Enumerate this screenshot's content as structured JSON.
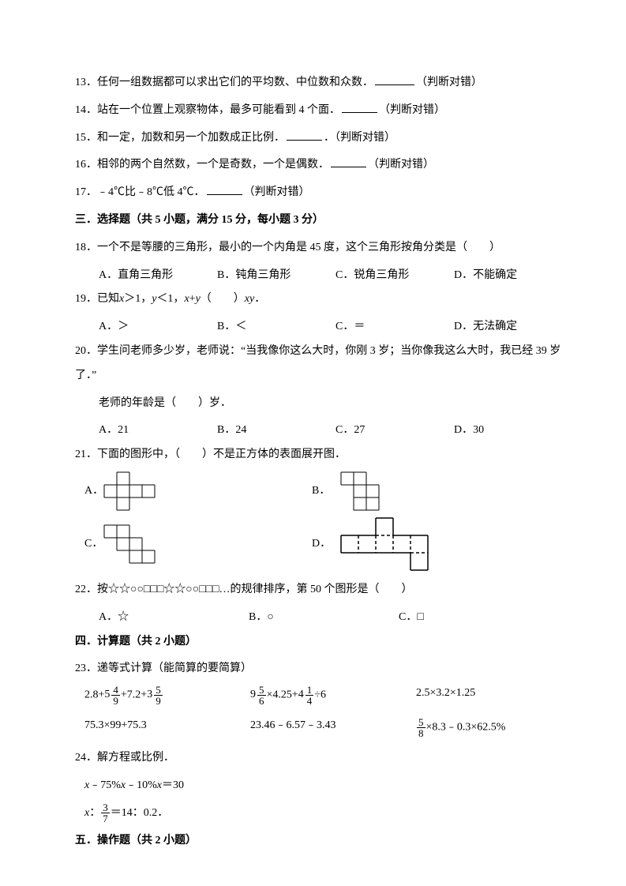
{
  "q13": {
    "num": "13．",
    "text_a": "任何一组数据都可以求出它们的平均数、中位数和众数．",
    "suffix": "（判断对错）"
  },
  "q14": {
    "num": "14．",
    "text_a": "站在一个位置上观察物体，最多可能看到 4 个面．",
    "suffix": "（判断对错）"
  },
  "q15": {
    "num": "15．",
    "text_a": "和一定，加数和另一个加数成正比例．",
    "dot": "．",
    "suffix": "（判断对错）"
  },
  "q16": {
    "num": "16．",
    "text_a": "相邻的两个自然数，一个是奇数，一个是偶数．",
    "suffix": "（判断对错）"
  },
  "q17": {
    "num": "17．",
    "text_a": "﹣4℃比﹣8℃低 4℃．",
    "suffix": "（判断对错）"
  },
  "sec3": "三．选择题（共 5 小题，满分 15 分，每小题 3 分）",
  "q18": {
    "num": "18．",
    "text": "一个不是等腰的三角形，最小的一个内角是 45 度，这个三角形按角分类是（　　）",
    "a": "A．直角三角形",
    "b": "B．钝角三角形",
    "c": "C．锐角三角形",
    "d": "D．不能确定"
  },
  "q19": {
    "num": "19．",
    "pre": "已知",
    "x": "x",
    "gt": "＞1，",
    "y": "y",
    "lt": "＜1，",
    "xy1": "x",
    "plus": "+",
    "xy2": "y",
    "paren": "（　　）",
    "xy3": "xy",
    "end": "．",
    "a": "A．＞",
    "b": "B．＜",
    "c": "C．＝",
    "d": "D．无法确定"
  },
  "q20": {
    "num": "20．",
    "line1": "学生问老师多少岁，老师说：“当我像你这么大时，你刚 3 岁；当你像我这么大时，我已经 39 岁了．”",
    "line2": "老师的年龄是（　　）岁．",
    "a": "A．21",
    "b": "B．24",
    "c": "C．27",
    "d": "D．30"
  },
  "q21": {
    "num": "21．",
    "text": "下面的图形中，（　　）不是正方体的表面展开图．",
    "a": "A．",
    "b": "B．",
    "c": "C．",
    "d": "D．"
  },
  "q22": {
    "num": "22．",
    "text": "按☆☆○○□□□☆☆○○□□□…的规律排序，第 50 个图形是（　　）",
    "a": "A．☆",
    "b": "B．○",
    "c": "C．□"
  },
  "sec4": "四．计算题（共 2 小题）",
  "q23": {
    "num": "23．",
    "text": "递等式计算（能简算的要简算）"
  },
  "calc": {
    "r1c1_a": "2.8+",
    "r1c1_mix_w": "5",
    "r1c1_mix_n": "4",
    "r1c1_mix_d": "9",
    "r1c1_b": "+7.2+",
    "r1c1_mix2_w": "3",
    "r1c1_mix2_n": "5",
    "r1c1_mix2_d": "9",
    "r1c2_mix_w": "9",
    "r1c2_mix_n": "5",
    "r1c2_mix_d": "6",
    "r1c2_a": "×4.25+",
    "r1c2_mix2_w": "4",
    "r1c2_mix2_n": "1",
    "r1c2_mix2_d": "4",
    "r1c2_b": "÷6",
    "r1c3": "2.5×3.2×1.25",
    "r2c1": "75.3×99+75.3",
    "r2c2": "23.46﹣6.57﹣3.43",
    "r2c3_n": "5",
    "r2c3_d": "8",
    "r2c3_rest": "×8.3﹣0.3×62.5%"
  },
  "q24": {
    "num": "24．",
    "text": "解方程或比例．",
    "eq1_a": "x",
    "eq1_b": "﹣75%",
    "eq1_c": "x",
    "eq1_d": "﹣10%",
    "eq1_e": "x",
    "eq1_f": "＝30",
    "eq2_a": "x",
    "eq2_b": "：",
    "eq2_n": "3",
    "eq2_d": "7",
    "eq2_c": "＝14：0.2．"
  },
  "sec5": "五．操作题（共 2 小题）",
  "nets": {
    "cell": 16,
    "stroke": "#000000",
    "stroke_w": 1,
    "dash": "3,2",
    "A": {
      "w": 4,
      "h": 3,
      "cells": [
        [
          1,
          0
        ],
        [
          0,
          1
        ],
        [
          1,
          1
        ],
        [
          2,
          1
        ],
        [
          3,
          1
        ],
        [
          1,
          2
        ]
      ]
    },
    "B": {
      "w": 3,
      "h": 3,
      "cells": [
        [
          0,
          0
        ],
        [
          1,
          0
        ],
        [
          1,
          1
        ],
        [
          2,
          1
        ],
        [
          1,
          2
        ],
        [
          2,
          2
        ]
      ]
    },
    "C": {
      "w": 4,
      "h": 3,
      "cells": [
        [
          0,
          0
        ],
        [
          1,
          0
        ],
        [
          1,
          1
        ],
        [
          2,
          1
        ],
        [
          2,
          2
        ],
        [
          3,
          2
        ]
      ]
    },
    "D": {
      "w": 5,
      "h": 3,
      "cells": [
        [
          2,
          0
        ],
        [
          0,
          1
        ],
        [
          1,
          1
        ],
        [
          2,
          1
        ],
        [
          3,
          1
        ],
        [
          4,
          2
        ]
      ],
      "dashed_inner": true,
      "bottom_extend": [
        4,
        1
      ]
    }
  }
}
